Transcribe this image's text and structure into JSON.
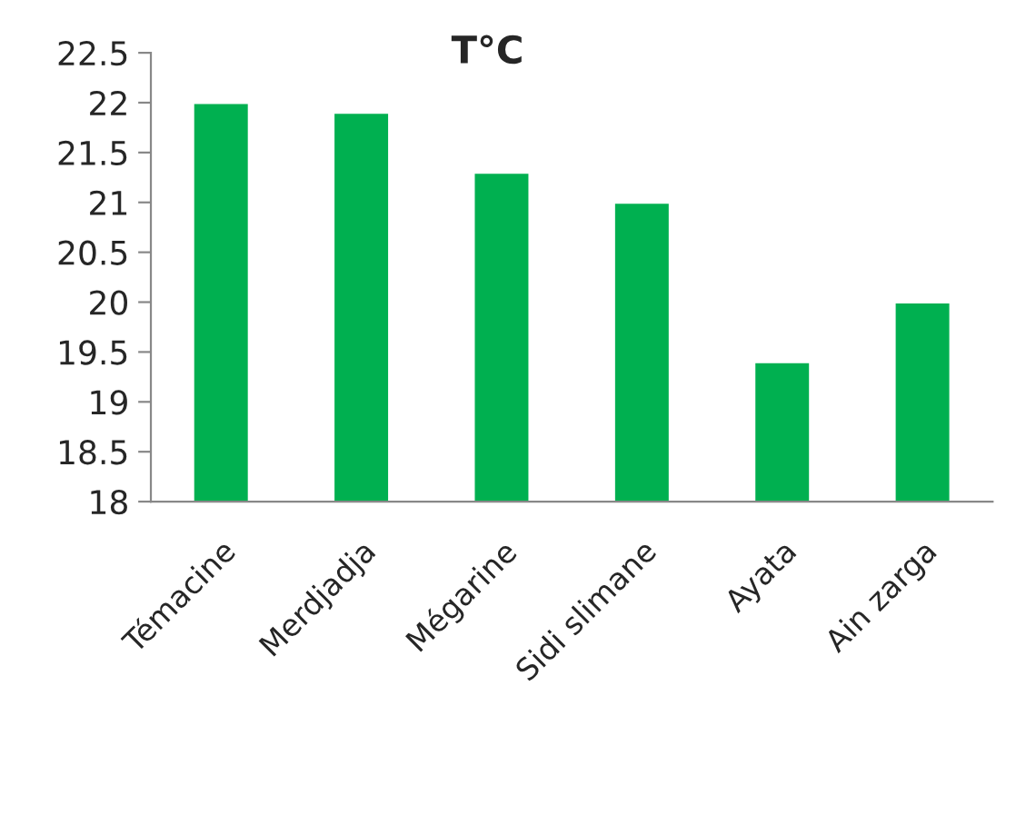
{
  "chart_data": {
    "type": "bar",
    "title": "T°C",
    "categories": [
      "Témacine",
      "Merdjadja",
      "Mégarine",
      "Sidi slimane",
      "Ayata",
      "Ain zarga"
    ],
    "values": [
      22,
      21.9,
      21.3,
      21,
      19.4,
      20
    ],
    "color": "#00b050",
    "ylim": [
      18,
      22.5
    ],
    "yticks": [
      18,
      18.5,
      19,
      19.5,
      20,
      20.5,
      21,
      21.5,
      22,
      22.5
    ],
    "grid": false,
    "legend": false
  }
}
